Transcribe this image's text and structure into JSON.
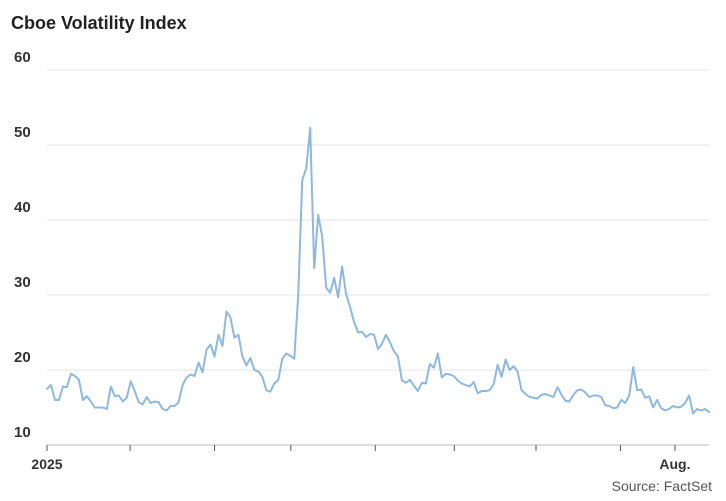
{
  "chart_data": {
    "type": "line",
    "title": "Cboe Volatility Index",
    "source": "Source: FactSet",
    "ylim": [
      10,
      60
    ],
    "yticks": [
      10,
      20,
      30,
      40,
      50,
      60
    ],
    "xlim": [
      0,
      243
    ],
    "xtick_labels": [
      {
        "x": 0,
        "label": "2025"
      },
      {
        "x": 230.5,
        "label": "Aug."
      }
    ],
    "xtick_marks": [
      0,
      30.5,
      61.5,
      89.5,
      120.5,
      149.5,
      179.5,
      210.5,
      230.5
    ],
    "grid": true,
    "line_color": "#8db8e0",
    "series": [
      {
        "values": [
          17.5,
          18,
          16,
          16,
          17.8,
          17.7,
          19.5,
          19.2,
          18.7,
          16,
          16.5,
          15.8,
          15,
          15,
          15,
          14.8,
          17.8,
          16.5,
          16.6,
          15.8,
          16.3,
          18.5,
          17.2,
          15.7,
          15.4,
          16.4,
          15.6,
          15.8,
          15.7,
          14.8,
          14.6,
          15.2,
          15.2,
          15.7,
          18,
          19,
          19.4,
          19.2,
          21,
          19.7,
          22.7,
          23.4,
          21.8,
          24.7,
          23.2,
          27.8,
          27,
          24.3,
          24.7,
          21.8,
          20.6,
          21.6,
          20,
          19.8,
          19.1,
          17.3,
          17.1,
          18.2,
          18.7,
          21.5,
          22.2,
          21.9,
          21.5,
          30,
          45.3,
          46.9,
          52.3,
          33.6,
          40.7,
          37.8,
          31,
          30.3,
          32.3,
          29.7,
          33.8,
          30.1,
          28.4,
          26.4,
          25,
          25.1,
          24.4,
          24.8,
          24.7,
          22.8,
          23.5,
          24.7,
          23.7,
          22.5,
          21.8,
          18.6,
          18.3,
          18.7,
          17.9,
          17.2,
          18.3,
          18.2,
          20.8,
          20.3,
          22.2,
          19,
          19.5,
          19.4,
          19.2,
          18.6,
          18.2,
          18,
          17.8,
          18.4,
          16.9,
          17.2,
          17.2,
          17.3,
          18.1,
          20.7,
          19.1,
          21.4,
          20,
          20.5,
          19.8,
          17.3,
          16.8,
          16.4,
          16.3,
          16.2,
          16.7,
          16.8,
          16.6,
          16.4,
          17.7,
          16.7,
          15.9,
          15.8,
          16.7,
          17.3,
          17.4,
          17,
          16.4,
          16.6,
          16.6,
          16.4,
          15.3,
          15.2,
          14.9,
          15,
          16,
          15.6,
          16.6,
          20.4,
          17.3,
          17.4,
          16.3,
          16.5,
          15,
          16,
          14.9,
          14.6,
          14.8,
          15.2,
          15,
          15.1,
          15.6,
          16.6,
          14.2,
          14.8,
          14.6,
          14.8,
          14.4
        ]
      }
    ]
  }
}
